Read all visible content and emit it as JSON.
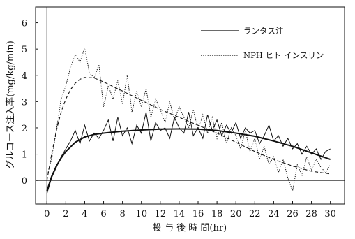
{
  "chart_data": {
    "type": "line",
    "title": "",
    "xlabel": "投 与 後 時 間(hr)",
    "ylabel": "グルコース注入率(mg/kg/min)",
    "xlim": [
      -1.2,
      31.5
    ],
    "ylim": [
      -0.9,
      6.6
    ],
    "x_ticks": [
      0,
      2,
      4,
      6,
      8,
      10,
      12,
      14,
      16,
      18,
      20,
      22,
      24,
      26,
      28,
      30
    ],
    "y_ticks": [
      0,
      1,
      2,
      3,
      4,
      5,
      6
    ],
    "grid": false,
    "legend_position": "top-right",
    "series": [
      {
        "name": "ランタス注",
        "style": "solid",
        "color": "#111111",
        "raw_x": [
          0,
          0.5,
          1,
          1.5,
          2,
          2.5,
          3,
          3.5,
          4,
          4.5,
          5,
          5.5,
          6,
          6.5,
          7,
          7.5,
          8,
          8.5,
          9,
          9.5,
          10,
          10.5,
          11,
          11.5,
          12,
          12.5,
          13,
          13.5,
          14,
          14.5,
          15,
          15.5,
          16,
          16.5,
          17,
          17.5,
          18,
          18.5,
          19,
          19.5,
          20,
          20.5,
          21,
          21.5,
          22,
          22.5,
          23,
          23.5,
          24,
          24.5,
          25,
          25.5,
          26,
          26.5,
          27,
          27.5,
          28,
          28.5,
          29,
          29.5,
          30
        ],
        "raw_y": [
          -0.5,
          0.1,
          0.5,
          0.9,
          1.2,
          1.5,
          1.9,
          1.4,
          2.1,
          1.5,
          1.8,
          1.6,
          1.9,
          2.3,
          1.5,
          2.4,
          1.7,
          2.0,
          1.4,
          2.1,
          1.8,
          2.6,
          1.5,
          2.2,
          1.9,
          2.0,
          1.6,
          2.4,
          2.0,
          1.8,
          2.6,
          1.7,
          2.0,
          1.6,
          2.5,
          1.9,
          2.3,
          1.7,
          2.1,
          1.8,
          2.2,
          1.6,
          2.0,
          1.8,
          1.9,
          1.4,
          1.7,
          2.1,
          1.5,
          1.7,
          1.3,
          1.6,
          1.2,
          1.4,
          1.0,
          1.3,
          1.0,
          1.2,
          0.8,
          1.1,
          1.2
        ],
        "fit_x": [
          0,
          0.5,
          1,
          1.5,
          2,
          3,
          4,
          5,
          6,
          8,
          10,
          12,
          14,
          16,
          18,
          20,
          22,
          24,
          26,
          28,
          30
        ],
        "fit_y": [
          -0.4,
          0.15,
          0.55,
          0.85,
          1.1,
          1.45,
          1.65,
          1.75,
          1.8,
          1.87,
          1.92,
          1.95,
          1.96,
          1.95,
          1.9,
          1.8,
          1.68,
          1.5,
          1.3,
          1.05,
          0.8
        ]
      },
      {
        "name": "NPH ヒト インスリン",
        "style": "dotted",
        "color": "#111111",
        "raw_x": [
          0,
          0.5,
          1,
          1.5,
          2,
          2.5,
          3,
          3.5,
          4,
          4.5,
          5,
          5.5,
          6,
          6.5,
          7,
          7.5,
          8,
          8.5,
          9,
          9.5,
          10,
          10.5,
          11,
          11.5,
          12,
          12.5,
          13,
          13.5,
          14,
          14.5,
          15,
          15.5,
          16,
          16.5,
          17,
          17.5,
          18,
          18.5,
          19,
          19.5,
          20,
          20.5,
          21,
          21.5,
          22,
          22.5,
          23,
          23.5,
          24,
          24.5,
          25,
          25.5,
          26,
          26.5,
          27,
          27.5,
          28,
          28.5,
          29,
          29.5,
          30
        ],
        "raw_y": [
          0.2,
          0.8,
          1.9,
          3.1,
          3.6,
          4.3,
          4.8,
          4.5,
          5.05,
          4.1,
          3.9,
          4.4,
          2.8,
          3.6,
          3.1,
          3.8,
          2.9,
          4.0,
          2.6,
          3.4,
          2.8,
          3.5,
          2.4,
          3.1,
          2.7,
          2.2,
          3.0,
          2.3,
          2.8,
          2.4,
          2.0,
          2.7,
          1.9,
          2.5,
          1.8,
          2.4,
          1.6,
          2.2,
          1.4,
          2.0,
          1.7,
          1.2,
          1.9,
          1.1,
          1.6,
          0.8,
          1.3,
          0.6,
          0.9,
          0.3,
          0.8,
          0.1,
          -0.4,
          0.6,
          0.2,
          0.9,
          0.4,
          0.8,
          0.5,
          0.3,
          0.6
        ],
        "fit_x": [
          0,
          0.5,
          1,
          1.5,
          2,
          2.5,
          3,
          3.5,
          4,
          5,
          6,
          8,
          10,
          12,
          14,
          16,
          18,
          20,
          22,
          24,
          26,
          28,
          30
        ],
        "fit_y": [
          0.0,
          1.0,
          1.9,
          2.6,
          3.1,
          3.45,
          3.7,
          3.85,
          3.92,
          3.9,
          3.75,
          3.4,
          3.05,
          2.7,
          2.4,
          2.1,
          1.8,
          1.45,
          1.1,
          0.8,
          0.55,
          0.35,
          0.25
        ]
      }
    ]
  }
}
